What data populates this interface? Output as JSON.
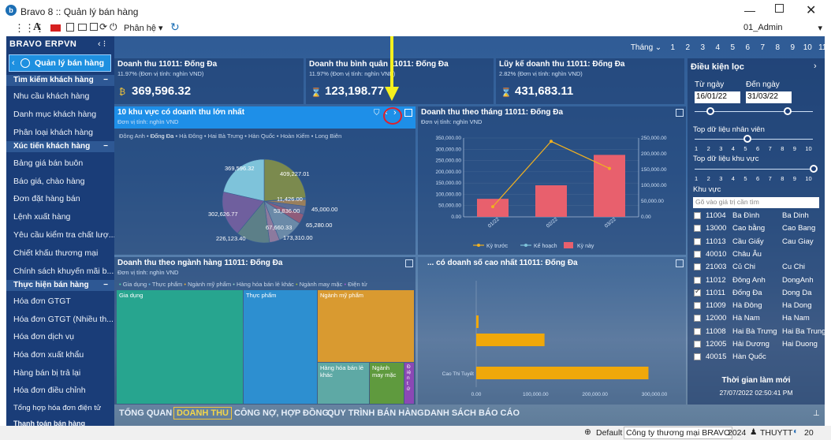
{
  "window": {
    "title": "Bravo 8 :: Quản lý bán hàng",
    "user": "01_Admin"
  },
  "toolbar": {
    "font_label": "A",
    "menu_label": "Phân hệ"
  },
  "sidebar": {
    "brand": "BRAVO ERPVN",
    "header": "Quản lý bán hàng",
    "groups": [
      {
        "label": "Tìm kiếm khách hàng",
        "toggle": "−"
      },
      {
        "label": "Xúc tiến khách hàng",
        "toggle": "−"
      },
      {
        "label": "Thực hiện bán hàng",
        "toggle": "−"
      }
    ],
    "items": [
      "Nhu cầu khách hàng",
      "Danh mục khách hàng",
      "Phân loại khách hàng",
      "Bảng giá bán buôn",
      "Báo giá, chào hàng",
      "Đơn đặt hàng bán",
      "Lệnh xuất hàng",
      "Yêu cầu kiểm tra chất lượ...",
      "Chiết khấu thương mại",
      "Chính sách khuyến mãi b...",
      "Hóa đơn GTGT",
      "Hóa đơn GTGT (Nhiều th...",
      "Hóa đơn dịch vụ",
      "Hóa đơn xuất khẩu",
      "Hàng bán bị trả lại",
      "Hóa đơn điều chỉnh",
      "Tổng hợp hóa đơn điện tử",
      "Thanh toán bán hàng"
    ]
  },
  "months": {
    "label": "Tháng",
    "values": [
      "1",
      "2",
      "3",
      "4",
      "5",
      "6",
      "7",
      "8",
      "9",
      "10",
      "11",
      "12"
    ]
  },
  "kpis": [
    {
      "title": "Doanh thu 11011: Đống Đa",
      "sub": "11.97% (Đơn vị tính: nghìn VND)",
      "value": "369,596.32"
    },
    {
      "title": "Doanh thu bình quân 11011: Đống Đa",
      "sub": "11.97% (Đơn vị tính: nghìn VND)",
      "value": "123,198.77"
    },
    {
      "title": "Lũy kế doanh thu 11011: Đống Đa",
      "sub": "2.82% (Đơn vị tính: nghìn VND)",
      "value": "431,683.11"
    }
  ],
  "pie": {
    "title": "10 khu vực có doanh thu lớn nhất",
    "unit": "Đơn vị tính: nghìn VND",
    "legend": [
      "Đông Anh",
      "Đống Đa",
      "Hà Đông",
      "Hai Bà Trưng",
      "Hàn Quốc",
      "Hoàn Kiếm",
      "Long Biên"
    ],
    "labels": [
      "369,596.32",
      "409,227.01",
      "11,426.00",
      "45,000.00",
      "53,836.00",
      "65,280.00",
      "173,310.00",
      "67,660.33",
      "226,123.40",
      "302,626.77"
    ]
  },
  "chart_data": [
    {
      "type": "pie",
      "title": "10 khu vực có doanh thu lớn nhất",
      "values": [
        409227.01,
        11426.0,
        45000.0,
        53836.0,
        65280.0,
        173310.0,
        67660.33,
        226123.4,
        302626.77,
        369596.32
      ]
    },
    {
      "type": "bar",
      "title": "Doanh thu theo tháng 11011: Đống Đa",
      "categories": [
        "01/22",
        "02/22",
        "03/22"
      ],
      "series": [
        {
          "name": "Kỳ này",
          "values": [
            80000,
            140000,
            275000
          ]
        },
        {
          "name": "Kỳ trước",
          "values": [
            null,
            335000,
            215000
          ]
        }
      ],
      "y_left_ticks": [
        "0.00",
        "50,000.00",
        "100,000.00",
        "150,000.00",
        "200,000.00",
        "250,000.00",
        "300,000.00",
        "350,000.00"
      ],
      "y_right_ticks": [
        "0.00",
        "50,000.00",
        "100,000.00",
        "150,000.00",
        "200,000.00",
        "250,000.00"
      ],
      "legend": [
        "Kỳ trước",
        "Kế hoạch",
        "Kỳ này"
      ],
      "ylim": [
        0,
        350000
      ]
    },
    {
      "type": "bar",
      "title": "Top 10 mặt hàng có doanh số cao nhất 11011: Đống Đa",
      "categories": [
        "",
        "Cao Thi Tuyết"
      ],
      "values": [
        115000,
        290000
      ],
      "x_ticks": [
        "0.00",
        "100,000.00",
        "200,000.00",
        "300,000.00"
      ],
      "xlim": [
        0,
        300000
      ]
    }
  ],
  "monthly": {
    "title": "Doanh thu theo tháng 11011: Đống Đa",
    "unit": "Đơn vị tính: nghìn VND"
  },
  "treemap": {
    "title": "Doanh thu theo ngành hàng 11011: Đống Đa",
    "unit": "Đơn vị tính: nghìn VND",
    "legend": [
      "Gia dụng",
      "Thực phẩm",
      "Ngành mỹ phẩm",
      "Hàng hóa bán lẻ khác",
      "Ngành may mặc",
      "Điện tử"
    ],
    "boxes": [
      "Gia dụng",
      "Thực phẩm",
      "Ngành mỹ phẩm",
      "Hàng hóa bán lẻ khác",
      "Ngành may mặc",
      "Điện tử"
    ]
  },
  "topitems": {
    "title": "... có doanh số cao nhất 11011: Đống Đa",
    "row_label": "Cao Thi Tuyết"
  },
  "filter": {
    "title": "Điều kiện lọc",
    "from_label": "Từ ngày",
    "to_label": "Đến ngày",
    "from": "16/01/22",
    "to": "31/03/22",
    "top_emp": "Top dữ liệu nhân viên",
    "top_area": "Top dữ liệu khu vực",
    "scale": [
      "1",
      "2",
      "3",
      "4",
      "5",
      "6",
      "7",
      "8",
      "9",
      "10"
    ],
    "area_label": "Khu vực",
    "search_placeholder": "Gõ vào giá trị cần tìm",
    "areas": [
      {
        "code": "11004",
        "name": "Ba Đình",
        "en": "Ba Dinh",
        "checked": false
      },
      {
        "code": "13000",
        "name": "Cao bằng",
        "en": "Cao Bang",
        "checked": false
      },
      {
        "code": "11013",
        "name": "Cầu Giấy",
        "en": "Cau Giay",
        "checked": false
      },
      {
        "code": "40010",
        "name": "Châu Âu",
        "en": "",
        "checked": false
      },
      {
        "code": "21003",
        "name": "Củ Chi",
        "en": "Cu Chi",
        "checked": false
      },
      {
        "code": "11012",
        "name": "Đông Anh",
        "en": "DongAnh",
        "checked": false
      },
      {
        "code": "11011",
        "name": "Đống Đa",
        "en": "Dong Da",
        "checked": true
      },
      {
        "code": "11009",
        "name": "Hà Đông",
        "en": "Ha Dong",
        "checked": false
      },
      {
        "code": "12000",
        "name": "Hà Nam",
        "en": "Ha Nam",
        "checked": false
      },
      {
        "code": "11008",
        "name": "Hai Bà Trưng",
        "en": "Hai Ba Trung",
        "checked": false
      },
      {
        "code": "12005",
        "name": "Hải Dương",
        "en": "Hai Duong",
        "checked": false
      },
      {
        "code": "40015",
        "name": "Hàn Quốc",
        "en": "",
        "checked": false
      }
    ],
    "update_label": "Thời gian làm mới",
    "update_time": "27/07/2022 02:50:41 PM"
  },
  "tabs": [
    "TỔNG QUAN",
    "DOANH THU",
    "CÔNG NỢ, HỢP ĐỒNG",
    "QUY TRÌNH BÁN HÀNG",
    "DANH SÁCH BÁO CÁO"
  ],
  "statusbar": {
    "db": "Default",
    "company": "Công ty thương mại BRAVO",
    "year": "2024",
    "user": "THUYTT",
    "count": "20"
  }
}
